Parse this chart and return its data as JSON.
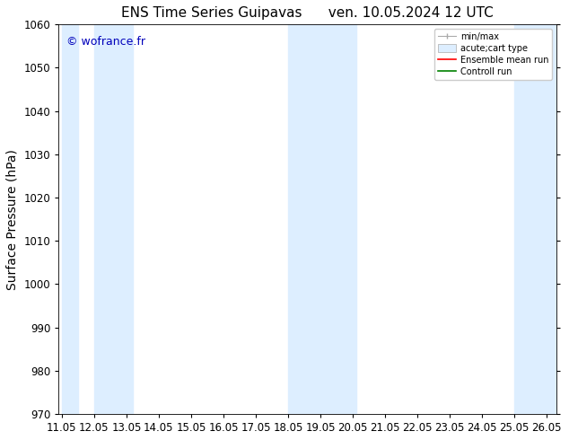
{
  "title": "ENS Time Series Guipavas      ven. 10.05.2024 12 UTC",
  "ylabel": "Surface Pressure (hPa)",
  "ylim": [
    970,
    1060
  ],
  "yticks": [
    970,
    980,
    990,
    1000,
    1010,
    1020,
    1030,
    1040,
    1050,
    1060
  ],
  "xlim_start": 10.95,
  "xlim_end": 26.35,
  "xtick_positions": [
    11.05,
    12.05,
    13.05,
    14.05,
    15.05,
    16.05,
    17.05,
    18.05,
    19.05,
    20.05,
    21.05,
    22.05,
    23.05,
    24.05,
    25.05,
    26.05
  ],
  "xtick_labels": [
    "11.05",
    "12.05",
    "13.05",
    "14.05",
    "15.05",
    "16.05",
    "17.05",
    "18.05",
    "19.05",
    "20.05",
    "21.05",
    "22.05",
    "23.05",
    "24.05",
    "25.05",
    "26.05"
  ],
  "watermark": "© wofrance.fr",
  "watermark_color": "#0000bb",
  "bg_color": "#ffffff",
  "plot_bg_color": "#ffffff",
  "shaded_regions": [
    {
      "x_start": 11.05,
      "x_end": 11.55,
      "color": "#ddeeff"
    },
    {
      "x_start": 12.05,
      "x_end": 13.25,
      "color": "#ddeeff"
    },
    {
      "x_start": 18.05,
      "x_end": 20.15,
      "color": "#ddeeff"
    },
    {
      "x_start": 25.05,
      "x_end": 26.35,
      "color": "#ddeeff"
    }
  ],
  "legend_items": [
    {
      "label": "min/max",
      "color": "#aaaaaa",
      "type": "errorbar"
    },
    {
      "label": "acute;cart type",
      "color": "#aaaaaa",
      "type": "band"
    },
    {
      "label": "Ensemble mean run",
      "color": "#ff0000",
      "type": "line"
    },
    {
      "label": "Controll run",
      "color": "#008000",
      "type": "line"
    }
  ],
  "title_fontsize": 11,
  "label_fontsize": 10,
  "tick_fontsize": 8.5,
  "legend_fontsize": 7,
  "watermark_fontsize": 9
}
